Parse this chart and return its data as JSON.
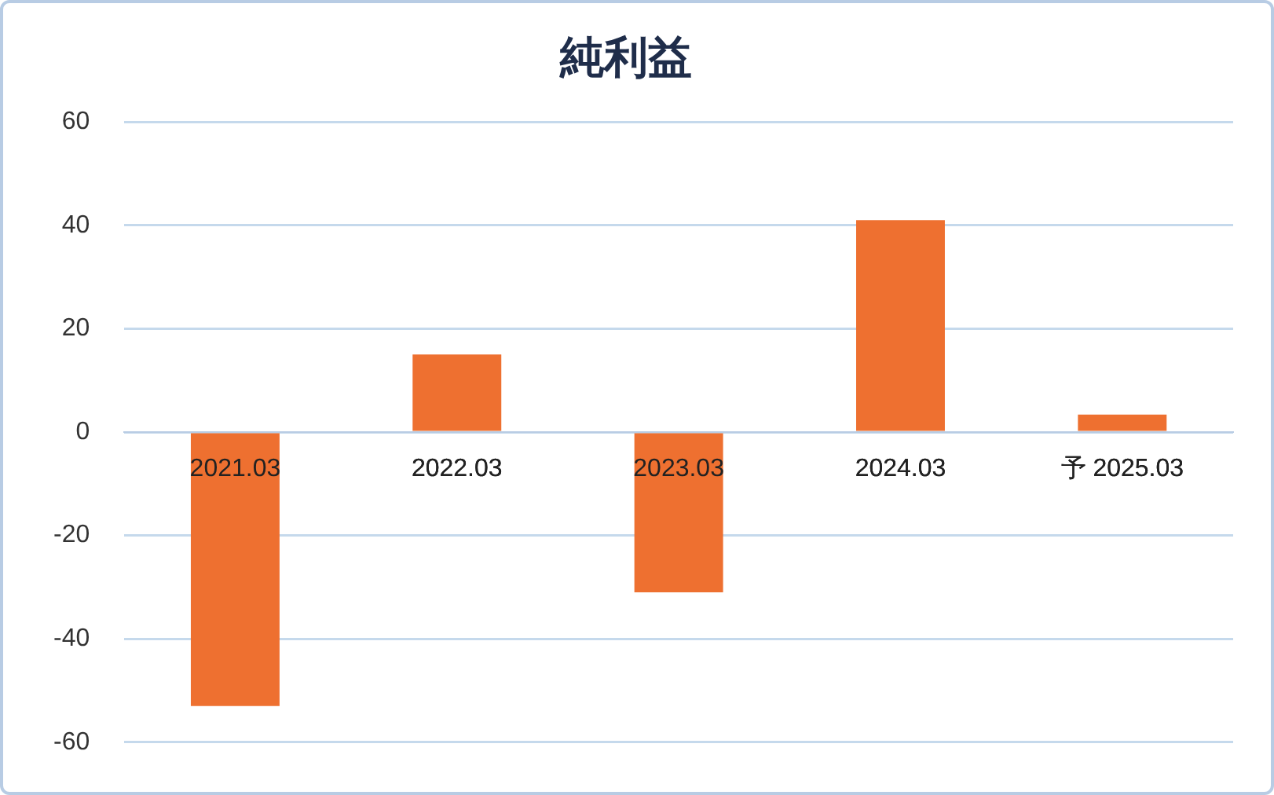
{
  "chart_data": {
    "type": "bar",
    "title": "純利益",
    "categories": [
      "2021.03",
      "2022.03",
      "2023.03",
      "2024.03",
      "予 2025.03"
    ],
    "values": [
      -53,
      15,
      -31,
      41,
      3.4
    ],
    "color": "#ee7030",
    "ylim": [
      -60,
      60
    ],
    "yticks": [
      -60,
      -40,
      -20,
      0,
      20,
      40,
      60
    ],
    "grid": "y"
  }
}
